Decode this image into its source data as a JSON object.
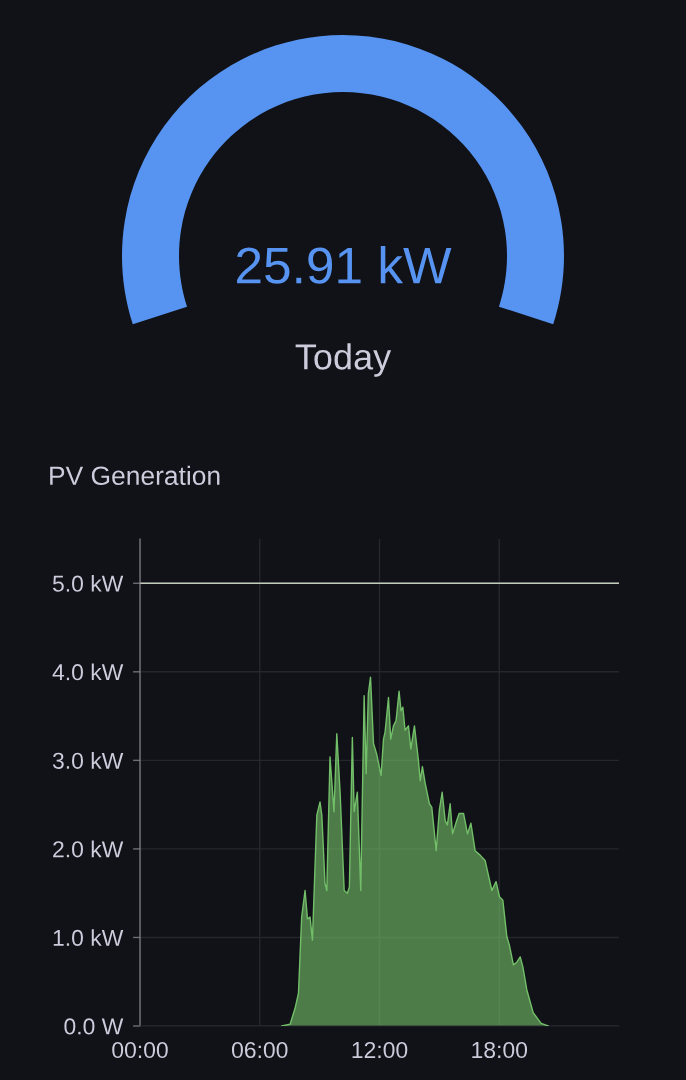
{
  "chart_data": [
    {
      "type": "pie",
      "categories": [
        null
      ],
      "values": [
        100
      ],
      "colors": [
        "#5794f2"
      ],
      "annotations": [
        "25.91 kW",
        "Today"
      ]
    },
    {
      "type": "area",
      "title": "PV Generation",
      "x": [
        7.1,
        7.52,
        7.77,
        7.94,
        8.1,
        8.27,
        8.39,
        8.52,
        8.64,
        8.86,
        9.02,
        9.11,
        9.27,
        9.36,
        9.52,
        9.72,
        9.86,
        10.03,
        10.23,
        10.39,
        10.49,
        10.64,
        10.73,
        10.89,
        11.06,
        11.23,
        11.33,
        11.44,
        11.55,
        11.7,
        11.86,
        12.08,
        12.2,
        12.28,
        12.45,
        12.56,
        12.7,
        12.83,
        12.98,
        13.08,
        13.17,
        13.28,
        13.45,
        13.57,
        13.75,
        13.95,
        14.04,
        14.15,
        14.29,
        14.5,
        14.62,
        14.84,
        15.0,
        15.14,
        15.29,
        15.4,
        15.54,
        15.66,
        15.87,
        15.99,
        16.21,
        16.41,
        16.58,
        16.79,
        17.04,
        17.29,
        17.63,
        17.84,
        18.01,
        18.18,
        18.38,
        18.51,
        18.71,
        18.88,
        19.05,
        19.18,
        19.38,
        19.7,
        20.1,
        20.45
      ],
      "series": [
        {
          "color": "#73bf69",
          "values": [
            0,
            0.02,
            0.2,
            0.37,
            1.23,
            1.53,
            1.21,
            1.23,
            0.97,
            2.38,
            2.53,
            2.38,
            1.61,
            1.53,
            3.04,
            2.42,
            3.3,
            2.62,
            1.53,
            1.5,
            1.57,
            3.26,
            2.42,
            2.64,
            1.53,
            3.73,
            2.85,
            3.75,
            3.94,
            3.19,
            3.07,
            2.83,
            3.24,
            3.32,
            3.71,
            3.24,
            3.39,
            3.45,
            3.78,
            3.56,
            3.6,
            3.34,
            3.39,
            3.13,
            3.39,
            3.0,
            2.77,
            2.93,
            2.74,
            2.51,
            2.47,
            1.98,
            2.44,
            2.64,
            2.32,
            2.27,
            2.51,
            2.17,
            2.32,
            2.4,
            2.4,
            2.17,
            2.29,
            1.98,
            1.93,
            1.87,
            1.53,
            1.63,
            1.46,
            1.42,
            1.01,
            0.91,
            0.69,
            0.72,
            0.78,
            0.67,
            0.41,
            0.15,
            0.03,
            0
          ]
        }
      ],
      "xlim": [
        0,
        24
      ],
      "xticks": [
        {
          "value": 0,
          "label": "00:00"
        },
        {
          "value": 6,
          "label": "06:00"
        },
        {
          "value": 12,
          "label": "12:00"
        },
        {
          "value": 18,
          "label": "18:00"
        }
      ],
      "ylim": [
        0,
        5.5
      ],
      "yticks": [
        {
          "value": 0,
          "label": "0.0 W"
        },
        {
          "value": 1,
          "label": "1.0 kW"
        },
        {
          "value": 2,
          "label": "2.0 kW"
        },
        {
          "value": 3,
          "label": "3.0 kW"
        },
        {
          "value": 4,
          "label": "4.0 kW"
        },
        {
          "value": 5,
          "label": "5.0 kW"
        }
      ],
      "grid": true,
      "ref_lines": [
        {
          "axis": "y",
          "value": 5,
          "color": "#c3cdc0",
          "line_style": "solid"
        }
      ]
    }
  ]
}
